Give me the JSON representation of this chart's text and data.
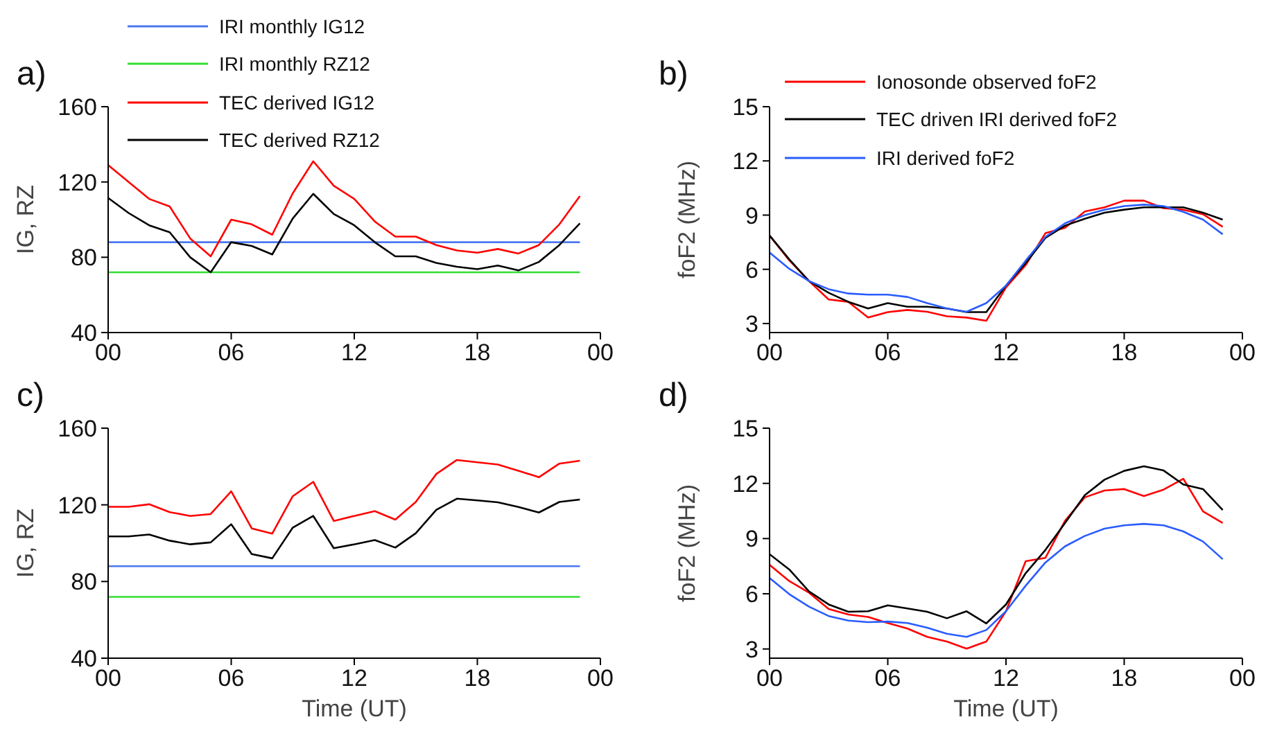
{
  "chart_data": [
    {
      "type": "line",
      "title": "a)",
      "ylabel": "IG, RZ",
      "x": [
        0,
        1,
        2,
        3,
        4,
        5,
        6,
        7,
        8,
        9,
        10,
        11,
        12,
        13,
        14,
        15,
        16,
        17,
        18,
        19,
        20,
        21,
        22,
        23
      ],
      "xlim": [
        0,
        24
      ],
      "xticks": [
        {
          "value": 0,
          "label": "00"
        },
        {
          "value": 6,
          "label": "06"
        },
        {
          "value": 12,
          "label": "12"
        },
        {
          "value": 18,
          "label": "18"
        },
        {
          "value": 24,
          "label": "00"
        }
      ],
      "ylim": [
        40,
        160
      ],
      "yticks": [
        40,
        80,
        120,
        160
      ],
      "grid": false,
      "legend": "top left",
      "series": [
        {
          "name": "IRI monthly IG12",
          "color": "#4a78f0",
          "values": [
            88,
            88,
            88,
            88,
            88,
            88,
            88,
            88,
            88,
            88,
            88,
            88,
            88,
            88,
            88,
            88,
            88,
            88,
            88,
            88,
            88,
            88,
            88,
            88
          ]
        },
        {
          "name": "IRI monthly RZ12",
          "color": "#33dd33",
          "values": [
            72,
            72,
            72,
            72,
            72,
            72,
            72,
            72,
            72,
            72,
            72,
            72,
            72,
            72,
            72,
            72,
            72,
            72,
            72,
            72,
            72,
            72,
            72,
            72
          ]
        },
        {
          "name": "TEC derived IG12",
          "color": "#ff0000",
          "values": [
            129,
            120,
            111,
            107,
            90,
            80.5,
            100,
            97.5,
            92,
            114,
            131,
            118,
            111,
            99,
            91,
            91,
            86.5,
            83.6,
            82.4,
            84.4,
            82,
            86.5,
            97.5,
            112.5
          ]
        },
        {
          "name": "TEC derived RZ12",
          "color": "#000000",
          "values": [
            111.5,
            103.5,
            97,
            93.3,
            80,
            72,
            88,
            86,
            81.5,
            100.6,
            113.7,
            103,
            97,
            88,
            80.5,
            80.5,
            77,
            75,
            73.7,
            75.6,
            73,
            77.5,
            86.5,
            98
          ]
        }
      ]
    },
    {
      "type": "line",
      "title": "b)",
      "ylabel": "foF2 (MHz)",
      "x": [
        0,
        1,
        2,
        3,
        4,
        5,
        6,
        7,
        8,
        9,
        10,
        11,
        12,
        13,
        14,
        15,
        16,
        17,
        18,
        19,
        20,
        21,
        22,
        23
      ],
      "xlim": [
        0,
        24
      ],
      "xticks": [
        {
          "value": 0,
          "label": "00"
        },
        {
          "value": 6,
          "label": "06"
        },
        {
          "value": 12,
          "label": "12"
        },
        {
          "value": 18,
          "label": "18"
        },
        {
          "value": 24,
          "label": "00"
        }
      ],
      "ylim": [
        2.5,
        15
      ],
      "yticks": [
        3,
        6,
        9,
        12,
        15
      ],
      "grid": false,
      "legend": "top left",
      "series": [
        {
          "name": "Ionosonde observed foF2",
          "color": "#ff0000",
          "values": [
            7.87,
            6.5,
            5.35,
            4.33,
            4.2,
            3.33,
            3.63,
            3.75,
            3.65,
            3.4,
            3.33,
            3.15,
            5,
            6.23,
            8,
            8.3,
            9.2,
            9.43,
            9.8,
            9.8,
            9.38,
            9.3,
            9.05,
            8.35
          ]
        },
        {
          "name": "TEC driven IRI derived foF2",
          "color": "#000000",
          "values": [
            7.87,
            6.55,
            5.35,
            4.7,
            4.2,
            3.83,
            4.13,
            3.93,
            3.93,
            3.83,
            3.63,
            3.63,
            5.1,
            6.35,
            7.74,
            8.42,
            8.8,
            9.13,
            9.3,
            9.43,
            9.43,
            9.43,
            9.13,
            8.75
          ]
        },
        {
          "name": "IRI derived foF2",
          "color": "#2a5cff",
          "values": [
            6.93,
            6.03,
            5.35,
            4.9,
            4.66,
            4.6,
            4.6,
            4.47,
            4.13,
            3.83,
            3.65,
            4.13,
            5.1,
            6.48,
            7.79,
            8.55,
            9,
            9.3,
            9.5,
            9.58,
            9.5,
            9.18,
            8.75,
            7.94
          ]
        }
      ]
    },
    {
      "type": "line",
      "title": "c)",
      "ylabel": "IG, RZ",
      "xlabel": "Time (UT)",
      "x": [
        0,
        1,
        2,
        3,
        4,
        5,
        6,
        7,
        8,
        9,
        10,
        11,
        12,
        13,
        14,
        15,
        16,
        17,
        18,
        19,
        20,
        21,
        22,
        23
      ],
      "xlim": [
        0,
        24
      ],
      "xticks": [
        {
          "value": 0,
          "label": "00"
        },
        {
          "value": 6,
          "label": "06"
        },
        {
          "value": 12,
          "label": "12"
        },
        {
          "value": 18,
          "label": "18"
        },
        {
          "value": 24,
          "label": "00"
        }
      ],
      "ylim": [
        40,
        160
      ],
      "yticks": [
        40,
        80,
        120,
        160
      ],
      "grid": false,
      "legend": false,
      "series": [
        {
          "color": "#4a78f0",
          "values": [
            88,
            88,
            88,
            88,
            88,
            88,
            88,
            88,
            88,
            88,
            88,
            88,
            88,
            88,
            88,
            88,
            88,
            88,
            88,
            88,
            88,
            88,
            88,
            88
          ]
        },
        {
          "color": "#33dd33",
          "values": [
            72,
            72,
            72,
            72,
            72,
            72,
            72,
            72,
            72,
            72,
            72,
            72,
            72,
            72,
            72,
            72,
            72,
            72,
            72,
            72,
            72,
            72,
            72,
            72
          ]
        },
        {
          "color": "#ff0000",
          "values": [
            119,
            119,
            120.3,
            116.2,
            114.2,
            115.2,
            127.1,
            107.7,
            105,
            124.5,
            132,
            111.6,
            114.2,
            116.7,
            112.3,
            121.5,
            136.1,
            143.4,
            142.2,
            141,
            137.8,
            134.4,
            141.5,
            143
          ]
        },
        {
          "color": "#000000",
          "values": [
            103.5,
            103.5,
            104.5,
            101.3,
            99.4,
            100.4,
            109.9,
            94.3,
            92.1,
            108.1,
            114.2,
            97.4,
            99.4,
            101.6,
            97.7,
            105.2,
            117.4,
            123.2,
            122.3,
            121.3,
            118.9,
            116,
            121.5,
            122.8
          ]
        }
      ]
    },
    {
      "type": "line",
      "title": "d)",
      "ylabel": "foF2 (MHz)",
      "xlabel": "Time (UT)",
      "x": [
        0,
        1,
        2,
        3,
        4,
        5,
        6,
        7,
        8,
        9,
        10,
        11,
        12,
        13,
        14,
        15,
        16,
        17,
        18,
        19,
        20,
        21,
        22,
        23
      ],
      "xlim": [
        0,
        24
      ],
      "xticks": [
        {
          "value": 0,
          "label": "00"
        },
        {
          "value": 6,
          "label": "06"
        },
        {
          "value": 12,
          "label": "12"
        },
        {
          "value": 18,
          "label": "18"
        },
        {
          "value": 24,
          "label": "00"
        }
      ],
      "ylim": [
        2.5,
        15
      ],
      "yticks": [
        3,
        6,
        9,
        12,
        15
      ],
      "grid": false,
      "legend": false,
      "series": [
        {
          "color": "#ff0000",
          "values": [
            7.57,
            6.69,
            6.06,
            5.17,
            4.87,
            4.74,
            4.41,
            4.11,
            3.66,
            3.4,
            3.02,
            3.4,
            5.05,
            7.77,
            7.95,
            9.97,
            11.24,
            11.61,
            11.69,
            11.31,
            11.66,
            12.25,
            10.48,
            9.85
          ]
        },
        {
          "color": "#000000",
          "values": [
            8.15,
            7.32,
            6.13,
            5.42,
            5.02,
            5.05,
            5.37,
            5.2,
            5.02,
            4.67,
            5.05,
            4.39,
            5.42,
            7.12,
            8.38,
            9.85,
            11.36,
            12.2,
            12.68,
            12.93,
            12.7,
            11.94,
            11.69,
            10.55
          ]
        },
        {
          "color": "#2a5cff",
          "values": [
            6.86,
            5.98,
            5.3,
            4.79,
            4.54,
            4.46,
            4.49,
            4.41,
            4.16,
            3.83,
            3.66,
            4.03,
            5.05,
            6.44,
            7.7,
            8.58,
            9.14,
            9.54,
            9.72,
            9.8,
            9.72,
            9.39,
            8.84,
            7.88
          ]
        }
      ]
    }
  ]
}
